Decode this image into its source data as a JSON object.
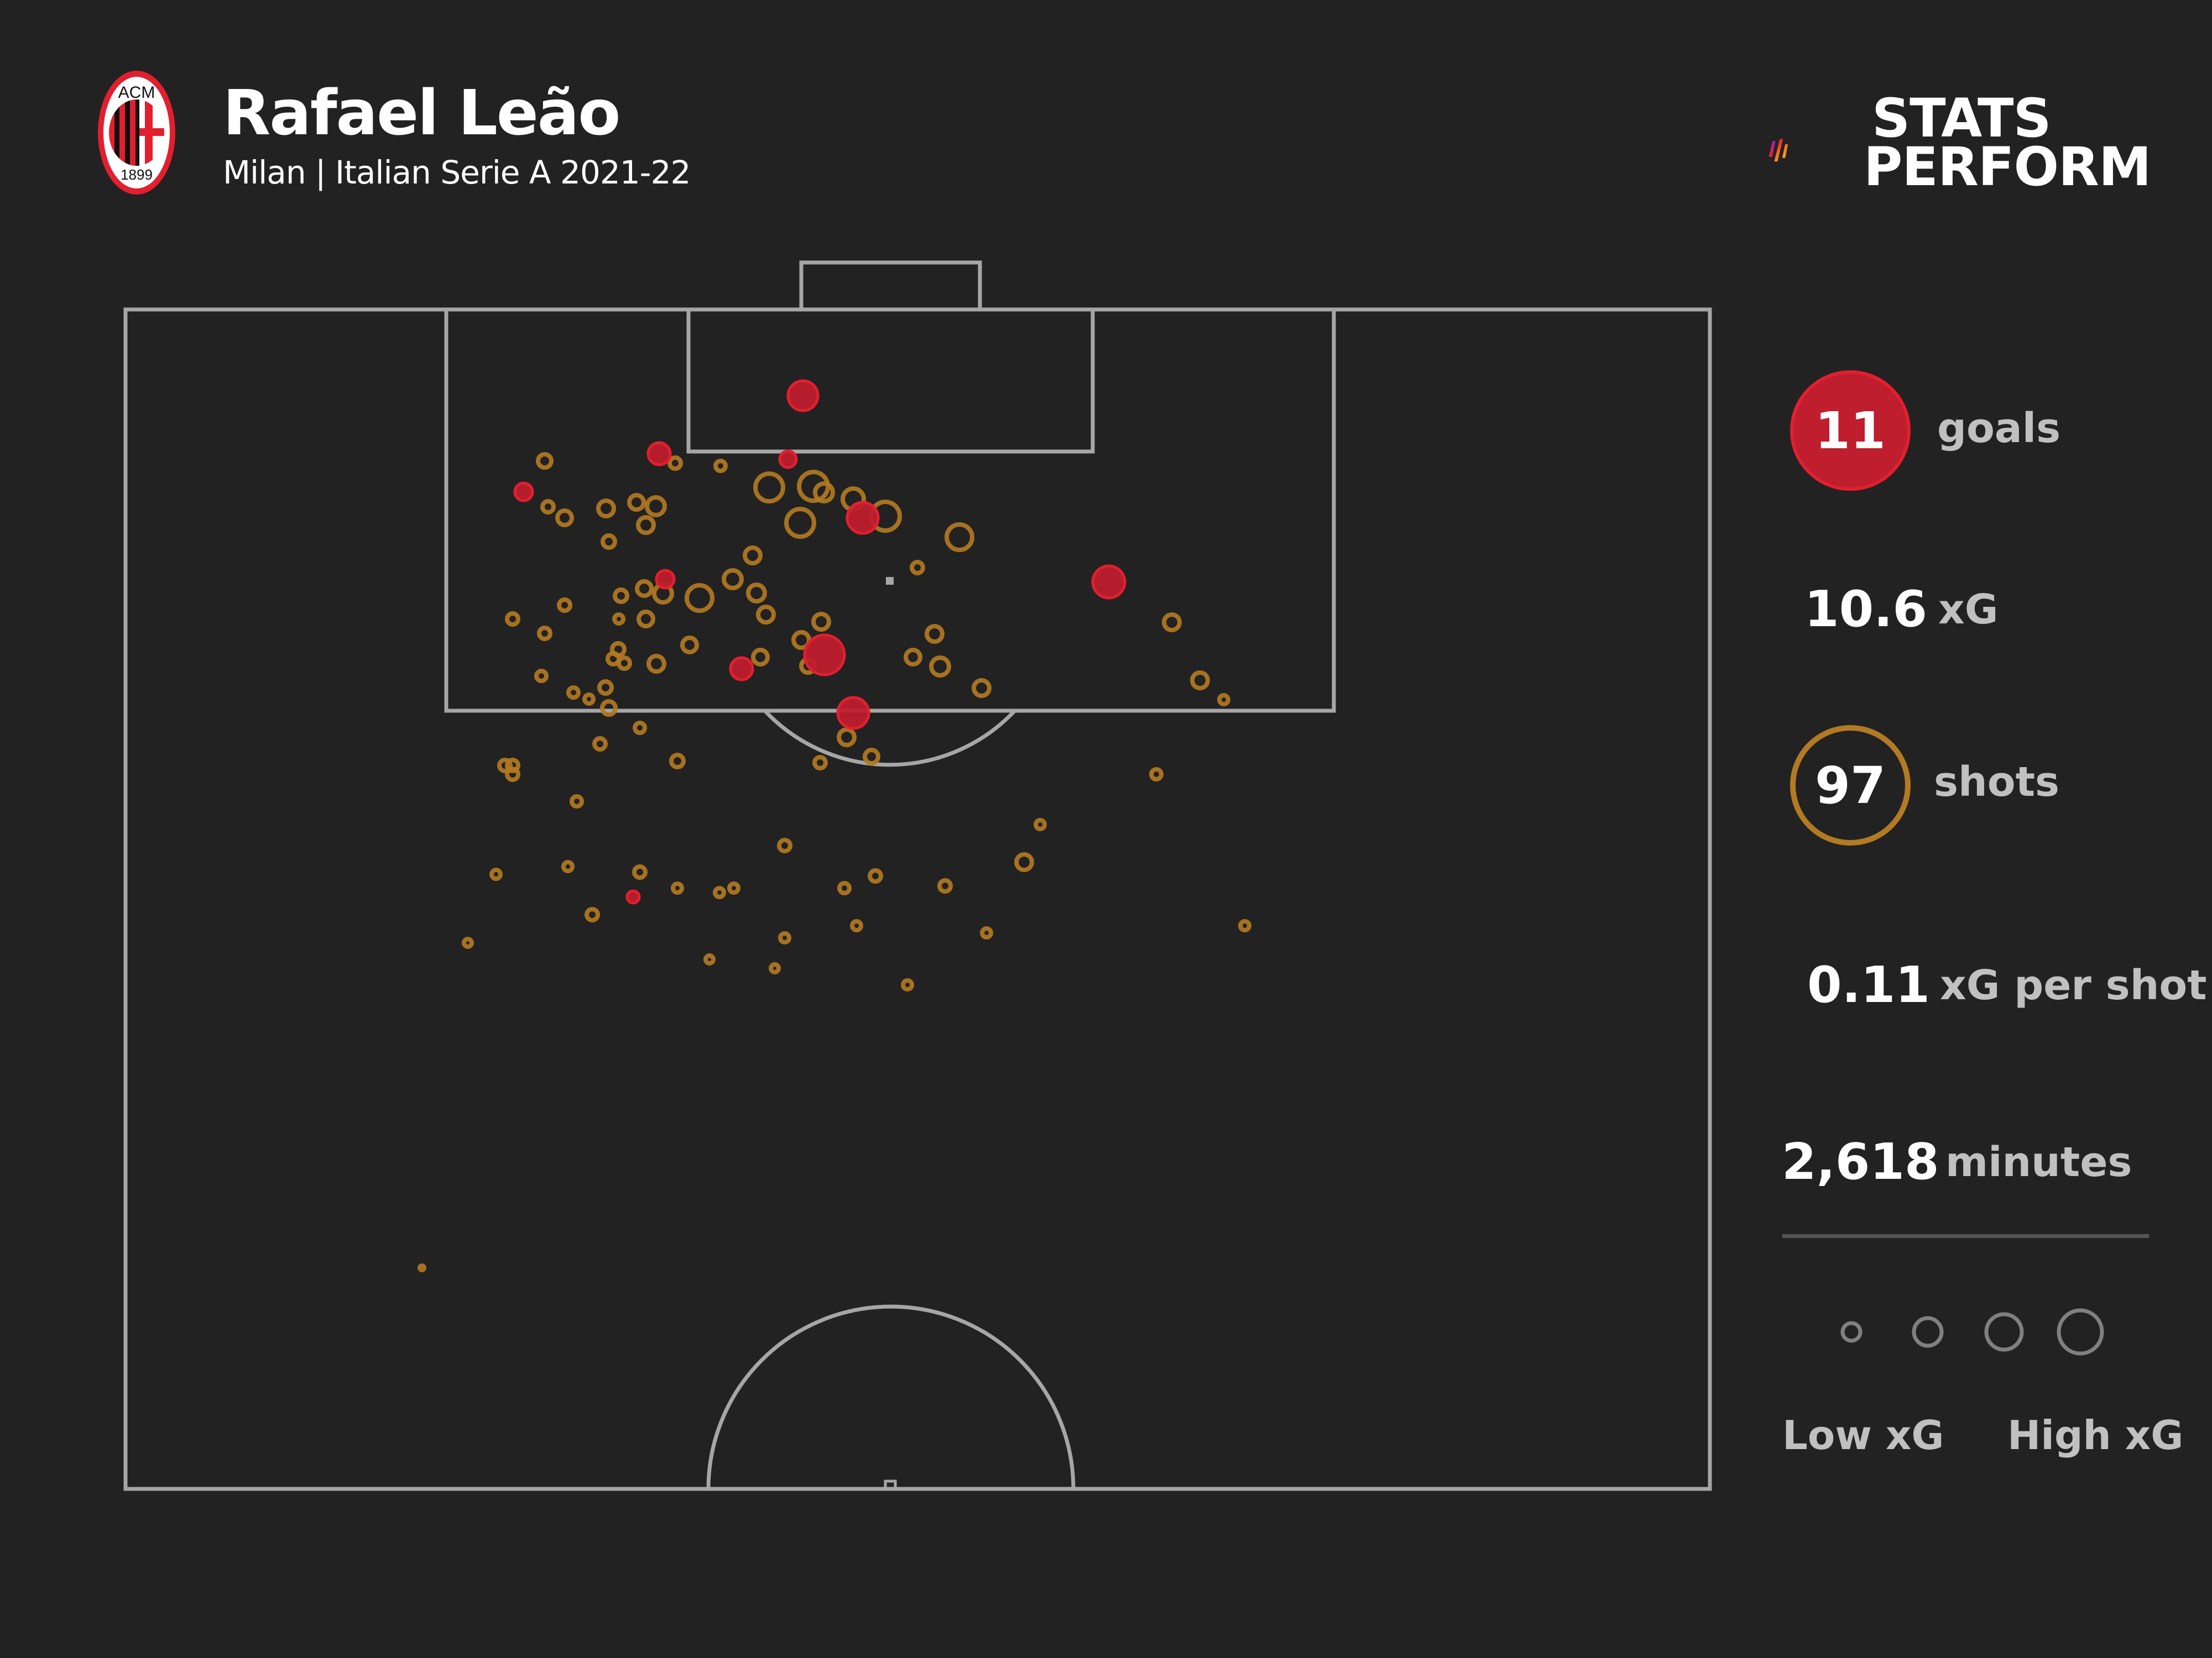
{
  "header": {
    "player_name": "Rafael Leão",
    "subtitle": "Milan | Italian Serie A 2021-22",
    "club_crest": {
      "icon": "ac-milan-crest-icon",
      "top_text": "ACM",
      "bottom_text": "1899"
    },
    "brand": {
      "line1": "STATS",
      "line2": "PERFORM",
      "icon": "stats-perform-logo-icon"
    }
  },
  "stats": {
    "goals": {
      "value": "11",
      "label": "goals"
    },
    "xg": {
      "value": "10.6",
      "label": "xG"
    },
    "shots": {
      "value": "97",
      "label": "shots"
    },
    "xg_per_shot": {
      "value": "0.11",
      "label": "xG per shot"
    },
    "minutes": {
      "value": "2,618",
      "label": "minutes"
    }
  },
  "legend": {
    "low_label": "Low xG",
    "high_label": "High xG",
    "sizes": [
      18,
      27,
      34,
      40
    ]
  },
  "colors": {
    "background": "#222222",
    "pitch_lines": "#a6a6a6",
    "goal": "#e21f2f",
    "goal_fill": "#be1e2d",
    "shot": "#b27a22",
    "legend_circle": "#808080",
    "text_primary": "#ffffff",
    "text_secondary": "#c0c0c0"
  },
  "chart_data": {
    "type": "scatter",
    "title": "Rafael Leão",
    "subtitle": "Milan | Italian Serie A 2021-22",
    "xlabel": "",
    "ylabel": "",
    "description": "Shot map on half pitch; circle size = xG; red filled = goal, gold ring = non-goal shot",
    "coordinate_space": "pixels in 4000x3000 image; pitch x 227-3092, y 560-2694 (goal at top)",
    "legend": [
      "Goal (red filled)",
      "Shot (gold ring)",
      "Low xG → High xG (size)"
    ],
    "totals": {
      "goals": 11,
      "xG": 10.6,
      "shots": 97,
      "xG_per_shot": 0.11,
      "minutes": 2618
    },
    "series": [
      {
        "name": "Goals",
        "points": [
          [
            1452,
            716,
            27
          ],
          [
            1192,
            821,
            20
          ],
          [
            947,
            890,
            16
          ],
          [
            1425,
            831,
            15
          ],
          [
            1560,
            937,
            28
          ],
          [
            1203,
            1048,
            16
          ],
          [
            2005,
            1053,
            29
          ],
          [
            1491,
            1185,
            36
          ],
          [
            1341,
            1210,
            20
          ],
          [
            1543,
            1290,
            28
          ],
          [
            1145,
            1623,
            11
          ]
        ]
      },
      {
        "name": "Shots",
        "points": [
          [
            985,
            834,
            16
          ],
          [
            1221,
            838,
            14
          ],
          [
            1303,
            843,
            13
          ],
          [
            1391,
            882,
            29
          ],
          [
            1471,
            880,
            30
          ],
          [
            1490,
            891,
            20
          ],
          [
            1543,
            903,
            23
          ],
          [
            1601,
            934,
            30
          ],
          [
            991,
            917,
            14
          ],
          [
            1021,
            937,
            17
          ],
          [
            1096,
            920,
            18
          ],
          [
            1151,
            909,
            17
          ],
          [
            1186,
            916,
            20
          ],
          [
            1168,
            950,
            18
          ],
          [
            1101,
            980,
            15
          ],
          [
            1361,
            1005,
            18
          ],
          [
            1447,
            946,
            29
          ],
          [
            1735,
            972,
            27
          ],
          [
            1659,
            1027,
            14
          ],
          [
            1325,
            1048,
            20
          ],
          [
            1368,
            1073,
            19
          ],
          [
            1385,
            1112,
            18
          ],
          [
            1165,
            1065,
            17
          ],
          [
            1123,
            1078,
            15
          ],
          [
            1199,
            1074,
            20
          ],
          [
            1265,
            1082,
            27
          ],
          [
            1021,
            1095,
            14
          ],
          [
            927,
            1120,
            14
          ],
          [
            985,
            1146,
            14
          ],
          [
            1119,
            1120,
            12
          ],
          [
            1168,
            1120,
            17
          ],
          [
            1485,
            1125,
            18
          ],
          [
            1449,
            1158,
            18
          ],
          [
            1690,
            1147,
            18
          ],
          [
            1118,
            1175,
            15
          ],
          [
            1109,
            1192,
            14
          ],
          [
            1129,
            1200,
            14
          ],
          [
            1247,
            1167,
            17
          ],
          [
            1187,
            1201,
            18
          ],
          [
            1375,
            1189,
            17
          ],
          [
            1461,
            1205,
            16
          ],
          [
            1651,
            1189,
            17
          ],
          [
            1700,
            1206,
            20
          ],
          [
            1775,
            1245,
            18
          ],
          [
            2119,
            1126,
            18
          ],
          [
            2170,
            1231,
            18
          ],
          [
            2213,
            1266,
            12
          ],
          [
            979,
            1223,
            13
          ],
          [
            1037,
            1253,
            13
          ],
          [
            1065,
            1265,
            12
          ],
          [
            1095,
            1244,
            15
          ],
          [
            1101,
            1281,
            16
          ],
          [
            1157,
            1317,
            13
          ],
          [
            1085,
            1346,
            14
          ],
          [
            1531,
            1334,
            18
          ],
          [
            1576,
            1369,
            16
          ],
          [
            1483,
            1380,
            14
          ],
          [
            913,
            1385,
            14
          ],
          [
            927,
            1385,
            14
          ],
          [
            927,
            1401,
            14
          ],
          [
            1043,
            1450,
            13
          ],
          [
            1225,
            1377,
            15
          ],
          [
            2091,
            1401,
            13
          ],
          [
            1881,
            1492,
            12
          ],
          [
            1419,
            1530,
            14
          ],
          [
            1852,
            1560,
            18
          ],
          [
            897,
            1582,
            12
          ],
          [
            1027,
            1568,
            12
          ],
          [
            1157,
            1578,
            14
          ],
          [
            1225,
            1607,
            12
          ],
          [
            1301,
            1615,
            12
          ],
          [
            1327,
            1607,
            12
          ],
          [
            1527,
            1607,
            13
          ],
          [
            1583,
            1585,
            14
          ],
          [
            1709,
            1603,
            14
          ],
          [
            1071,
            1655,
            14
          ],
          [
            846,
            1706,
            11
          ],
          [
            1419,
            1697,
            12
          ],
          [
            1549,
            1675,
            12
          ],
          [
            1784,
            1688,
            12
          ],
          [
            2251,
            1675,
            12
          ],
          [
            1283,
            1736,
            11
          ],
          [
            1401,
            1752,
            11
          ],
          [
            1641,
            1782,
            12
          ],
          [
            763,
            2294,
            8
          ]
        ]
      }
    ]
  }
}
